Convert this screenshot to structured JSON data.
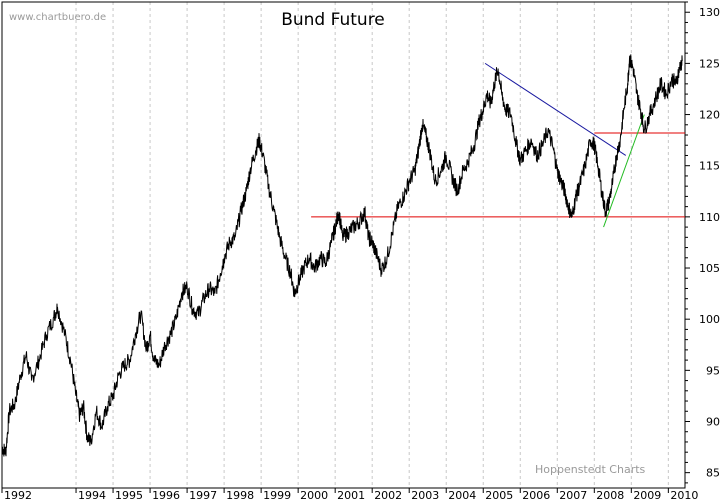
{
  "chart_data": {
    "type": "line",
    "title": "Bund Future",
    "watermark": "www.chartbuero.de",
    "source": "Hoppenstedt Charts",
    "x_tick_labels": [
      "1992",
      "1994",
      "1995",
      "1996",
      "1997",
      "1998",
      "1999",
      "2000",
      "2001",
      "2002",
      "2003",
      "2004",
      "2005",
      "2006",
      "2007",
      "2008",
      "2009",
      "2010"
    ],
    "y_ticks": [
      85,
      90,
      95,
      100,
      105,
      110,
      115,
      120,
      125,
      130
    ],
    "ylim": [
      83.5,
      131
    ],
    "xlim": [
      1992.0,
      2010.45
    ],
    "grid": "vertical dotted",
    "series": [
      {
        "values": [
          [
            1992.0,
            87.5
          ],
          [
            1992.1,
            87.0
          ],
          [
            1992.2,
            91.0
          ],
          [
            1992.35,
            91.8
          ],
          [
            1992.5,
            94.5
          ],
          [
            1992.65,
            96.5
          ],
          [
            1992.8,
            94.0
          ],
          [
            1993.0,
            96.0
          ],
          [
            1993.2,
            98.5
          ],
          [
            1993.4,
            100.2
          ],
          [
            1993.5,
            101.2
          ],
          [
            1993.7,
            98.5
          ],
          [
            1993.85,
            96.0
          ],
          [
            1994.0,
            92.5
          ],
          [
            1994.1,
            90.5
          ],
          [
            1994.2,
            91.5
          ],
          [
            1994.3,
            88.5
          ],
          [
            1994.4,
            88.0
          ],
          [
            1994.55,
            91.0
          ],
          [
            1994.7,
            89.5
          ],
          [
            1994.85,
            91.5
          ],
          [
            1995.0,
            92.5
          ],
          [
            1995.15,
            94.5
          ],
          [
            1995.3,
            95.5
          ],
          [
            1995.45,
            96.0
          ],
          [
            1995.6,
            98.5
          ],
          [
            1995.75,
            100.5
          ],
          [
            1995.9,
            97.0
          ],
          [
            1996.0,
            98.5
          ],
          [
            1996.1,
            96.0
          ],
          [
            1996.25,
            95.5
          ],
          [
            1996.4,
            97.5
          ],
          [
            1996.55,
            98.5
          ],
          [
            1996.7,
            100.0
          ],
          [
            1996.85,
            102.5
          ],
          [
            1997.0,
            103.2
          ],
          [
            1997.15,
            101.0
          ],
          [
            1997.3,
            100.5
          ],
          [
            1997.45,
            102.0
          ],
          [
            1997.6,
            103.0
          ],
          [
            1997.75,
            102.5
          ],
          [
            1997.9,
            104.5
          ],
          [
            1998.0,
            106.0
          ],
          [
            1998.15,
            107.5
          ],
          [
            1998.3,
            108.0
          ],
          [
            1998.45,
            110.5
          ],
          [
            1998.6,
            112.5
          ],
          [
            1998.7,
            114.5
          ],
          [
            1998.85,
            116.5
          ],
          [
            1998.95,
            117.5
          ],
          [
            1999.05,
            116.0
          ],
          [
            1999.2,
            113.0
          ],
          [
            1999.35,
            110.5
          ],
          [
            1999.5,
            108.0
          ],
          [
            1999.65,
            106.0
          ],
          [
            1999.8,
            104.5
          ],
          [
            1999.9,
            102.5
          ],
          [
            2000.0,
            103.5
          ],
          [
            2000.15,
            105.0
          ],
          [
            2000.3,
            106.0
          ],
          [
            2000.45,
            105.0
          ],
          [
            2000.6,
            106.0
          ],
          [
            2000.75,
            105.5
          ],
          [
            2000.9,
            107.5
          ],
          [
            2001.0,
            109.0
          ],
          [
            2001.1,
            110.5
          ],
          [
            2001.2,
            108.0
          ],
          [
            2001.35,
            108.5
          ],
          [
            2001.5,
            109.0
          ],
          [
            2001.65,
            109.5
          ],
          [
            2001.8,
            110.5
          ],
          [
            2001.9,
            108.0
          ],
          [
            2002.0,
            107.5
          ],
          [
            2002.1,
            106.5
          ],
          [
            2002.25,
            104.8
          ],
          [
            2002.4,
            106.0
          ],
          [
            2002.55,
            108.5
          ],
          [
            2002.7,
            111.0
          ],
          [
            2002.85,
            112.0
          ],
          [
            2003.0,
            113.5
          ],
          [
            2003.15,
            114.5
          ],
          [
            2003.25,
            116.5
          ],
          [
            2003.35,
            119.0
          ],
          [
            2003.45,
            118.0
          ],
          [
            2003.55,
            116.5
          ],
          [
            2003.7,
            113.5
          ],
          [
            2003.85,
            114.5
          ],
          [
            2004.0,
            116.0
          ],
          [
            2004.15,
            114.0
          ],
          [
            2004.3,
            112.5
          ],
          [
            2004.45,
            114.5
          ],
          [
            2004.6,
            115.5
          ],
          [
            2004.75,
            117.0
          ],
          [
            2004.9,
            119.5
          ],
          [
            2005.0,
            120.5
          ],
          [
            2005.1,
            122.0
          ],
          [
            2005.2,
            121.0
          ],
          [
            2005.3,
            123.0
          ],
          [
            2005.4,
            124.5
          ],
          [
            2005.5,
            122.0
          ],
          [
            2005.6,
            120.5
          ],
          [
            2005.75,
            120.0
          ],
          [
            2005.9,
            117.0
          ],
          [
            2006.0,
            115.5
          ],
          [
            2006.15,
            116.5
          ],
          [
            2006.3,
            117.5
          ],
          [
            2006.45,
            116.0
          ],
          [
            2006.6,
            117.0
          ],
          [
            2006.75,
            118.5
          ],
          [
            2006.9,
            116.5
          ],
          [
            2007.0,
            114.5
          ],
          [
            2007.1,
            113.5
          ],
          [
            2007.2,
            112.5
          ],
          [
            2007.3,
            111.0
          ],
          [
            2007.4,
            110.0
          ],
          [
            2007.5,
            112.0
          ],
          [
            2007.6,
            113.0
          ],
          [
            2007.75,
            115.0
          ],
          [
            2007.9,
            117.5
          ],
          [
            2008.0,
            117.0
          ],
          [
            2008.1,
            115.0
          ],
          [
            2008.2,
            112.5
          ],
          [
            2008.3,
            110.5
          ],
          [
            2008.4,
            111.5
          ],
          [
            2008.5,
            113.5
          ],
          [
            2008.6,
            116.0
          ],
          [
            2008.7,
            117.5
          ],
          [
            2008.8,
            120.5
          ],
          [
            2008.9,
            123.0
          ],
          [
            2008.95,
            125.5
          ],
          [
            2009.05,
            124.5
          ],
          [
            2009.15,
            122.0
          ],
          [
            2009.25,
            120.5
          ],
          [
            2009.35,
            118.5
          ],
          [
            2009.5,
            120.0
          ],
          [
            2009.65,
            121.5
          ],
          [
            2009.8,
            123.0
          ],
          [
            2009.95,
            122.0
          ],
          [
            2010.1,
            123.5
          ],
          [
            2010.2,
            123.0
          ],
          [
            2010.3,
            124.5
          ],
          [
            2010.38,
            125.3
          ]
        ]
      }
    ],
    "annotations": [
      {
        "type": "horizontal-line",
        "color": "#e00000",
        "y": 110.0,
        "x_from": 2000.35,
        "x_to": 2010.45
      },
      {
        "type": "horizontal-line",
        "color": "#e00000",
        "y": 118.2,
        "x_from": 2008.0,
        "x_to": 2010.45
      },
      {
        "type": "trend-line",
        "color": "#1a1aa0",
        "from": [
          2005.05,
          125.0
        ],
        "to": [
          2008.85,
          116.0
        ]
      },
      {
        "type": "trend-line",
        "color": "#22bb22",
        "from": [
          2008.25,
          109.0
        ],
        "to": [
          2009.35,
          120.0
        ]
      }
    ],
    "colors": {
      "price": "#000000",
      "grid": "#c8c8c8",
      "axis": "#000000"
    }
  }
}
